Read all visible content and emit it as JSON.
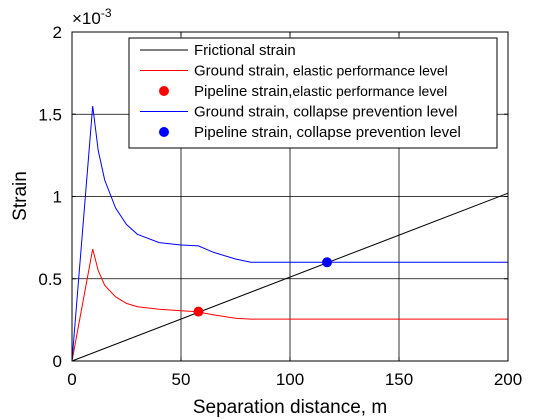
{
  "chart_data": {
    "type": "line",
    "xlabel": "Separation distance, m",
    "ylabel": "Strain",
    "exponent_label": "×10",
    "exponent_sup": "-3",
    "xlim": [
      0,
      200
    ],
    "ylim": [
      0,
      0.002
    ],
    "x_ticks": [
      0,
      50,
      100,
      150,
      200
    ],
    "y_ticks": [
      0,
      0.0005,
      0.001,
      0.0015,
      0.002
    ],
    "y_tick_labels": [
      "0",
      "0.5",
      "1",
      "1.5",
      "2"
    ],
    "grid": true,
    "legend_position": "top-right",
    "series": [
      {
        "name": "Frictional strain",
        "kind": "line",
        "color": "#000000",
        "points": [
          [
            0,
            0
          ],
          [
            200,
            0.00102
          ]
        ]
      },
      {
        "name": "Ground strain, elastic performance level",
        "name_main": "Ground strain,",
        "name_small": " elastic performance level",
        "kind": "line",
        "color": "#ff0000",
        "points": [
          [
            0,
            0
          ],
          [
            9.5,
            0.00068
          ],
          [
            12,
            0.00055
          ],
          [
            15,
            0.00046
          ],
          [
            20,
            0.00039
          ],
          [
            25,
            0.00035
          ],
          [
            30,
            0.00033
          ],
          [
            40,
            0.000315
          ],
          [
            50,
            0.000305
          ],
          [
            57,
            0.0003
          ],
          [
            65,
            0.00028
          ],
          [
            75,
            0.00026
          ],
          [
            82,
            0.000255
          ],
          [
            200,
            0.000255
          ]
        ]
      },
      {
        "name": "Pipeline strain,elastic performance level",
        "name_main": "Pipeline strain,",
        "name_small": "elastic performance level",
        "kind": "marker",
        "color": "#ff0000",
        "points": [
          [
            58,
            0.0003
          ]
        ]
      },
      {
        "name": "Ground strain, collapse prevention level",
        "kind": "line",
        "color": "#0000ff",
        "points": [
          [
            0,
            0
          ],
          [
            9.5,
            0.00155
          ],
          [
            12,
            0.00128
          ],
          [
            15,
            0.0011
          ],
          [
            20,
            0.00093
          ],
          [
            25,
            0.00083
          ],
          [
            30,
            0.00077
          ],
          [
            40,
            0.00072
          ],
          [
            50,
            0.000705
          ],
          [
            58,
            0.0007
          ],
          [
            65,
            0.00066
          ],
          [
            75,
            0.00062
          ],
          [
            82,
            0.0006
          ],
          [
            200,
            0.0006
          ]
        ]
      },
      {
        "name": "Pipeline strain, collapse prevention level",
        "kind": "marker",
        "color": "#0000ff",
        "points": [
          [
            117,
            0.0006
          ]
        ]
      }
    ]
  }
}
